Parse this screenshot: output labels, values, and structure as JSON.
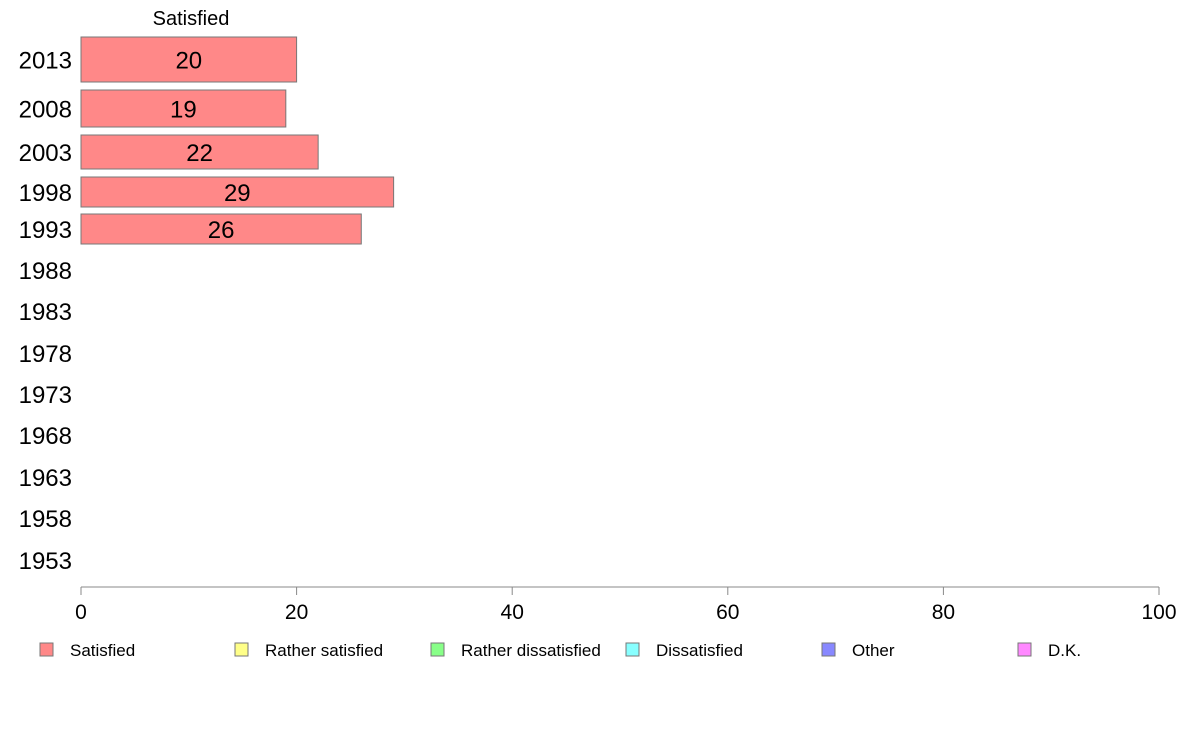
{
  "chart_data": {
    "type": "bar",
    "orientation": "horizontal",
    "stacked": true,
    "categories": [
      "2013",
      "2008",
      "2003",
      "1998",
      "1993",
      "1988",
      "1983",
      "1978",
      "1973",
      "1968",
      "1963",
      "1958",
      "1953"
    ],
    "series": [
      {
        "name": "Satisfied",
        "color": "#ff8888",
        "values": [
          20,
          19,
          22,
          29,
          26,
          null,
          null,
          null,
          null,
          null,
          null,
          null,
          null
        ]
      },
      {
        "name": "Rather satisfied",
        "color": "#ffff88",
        "values": [
          null,
          null,
          null,
          null,
          null,
          null,
          null,
          null,
          null,
          null,
          null,
          null,
          null
        ]
      },
      {
        "name": "Rather dissatisfied",
        "color": "#88ff88",
        "values": [
          null,
          null,
          null,
          null,
          null,
          null,
          null,
          null,
          null,
          null,
          null,
          null,
          null
        ]
      },
      {
        "name": "Dissatisfied",
        "color": "#88ffff",
        "values": [
          null,
          null,
          null,
          null,
          null,
          null,
          null,
          null,
          null,
          null,
          null,
          null,
          null
        ]
      },
      {
        "name": "Other",
        "color": "#8888ff",
        "values": [
          null,
          null,
          null,
          null,
          null,
          null,
          null,
          null,
          null,
          null,
          null,
          null,
          null
        ]
      },
      {
        "name": "D.K.",
        "color": "#ff88ff",
        "values": [
          null,
          null,
          null,
          null,
          null,
          null,
          null,
          null,
          null,
          null,
          null,
          null,
          null
        ]
      }
    ],
    "column_header": "Satisfied",
    "xlim": [
      0,
      100
    ],
    "xticks": [
      0,
      20,
      40,
      60,
      80,
      100
    ],
    "grid": false,
    "legend_position": "bottom"
  }
}
